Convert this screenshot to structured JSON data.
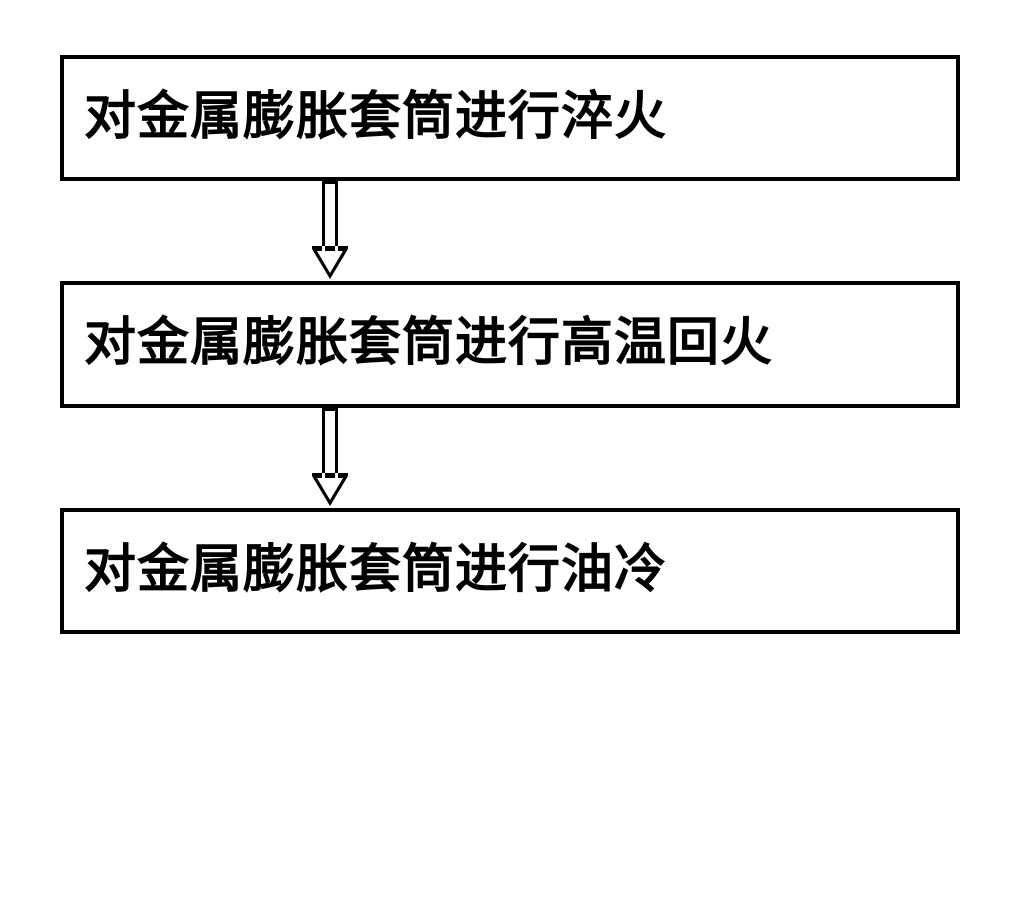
{
  "flowchart": {
    "type": "flowchart",
    "orientation": "vertical",
    "background_color": "#ffffff",
    "box_border_color": "#000000",
    "box_border_width": 4,
    "box_background": "#ffffff",
    "text_color": "#000000",
    "font_size_pt": 39,
    "font_weight": "bold",
    "font_family": "SimSun",
    "arrow_style": "hollow",
    "arrow_color": "#000000",
    "arrow_border_width": 3,
    "steps": [
      {
        "label": "对金属膨胀套筒进行淬火"
      },
      {
        "label": "对金属膨胀套筒进行高温回火"
      },
      {
        "label": "对金属膨胀套筒进行油冷"
      }
    ]
  }
}
